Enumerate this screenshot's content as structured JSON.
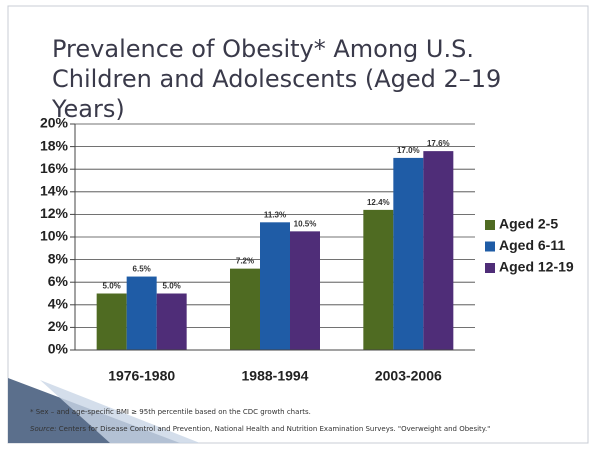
{
  "chart_data": {
    "type": "bar",
    "title": "Prevalence of Obesity* Among U.S. Children and Adolescents (Aged 2–19 Years)",
    "categories": [
      "1976-1980",
      "1988-1994",
      "2003-2006"
    ],
    "series": [
      {
        "name": "Aged 2-5",
        "color": "#4f6b22",
        "values": [
          5.0,
          7.2,
          12.4
        ],
        "value_labels": [
          "5.0%",
          "7.2%",
          "12.4%"
        ]
      },
      {
        "name": "Aged 6-11",
        "color": "#1f5ca6",
        "values": [
          6.5,
          11.3,
          17.0
        ],
        "value_labels": [
          "6.5%",
          "11.3%",
          "17.0%"
        ]
      },
      {
        "name": "Aged 12-19",
        "color": "#4f2d78",
        "values": [
          5.0,
          10.5,
          17.6
        ],
        "value_labels": [
          "5.0%",
          "10.5%",
          "17.6%"
        ]
      }
    ],
    "ylim": [
      0,
      20
    ],
    "yticks": [
      {
        "value": 0,
        "label": "0%"
      },
      {
        "value": 2,
        "label": "2%"
      },
      {
        "value": 4,
        "label": "4%"
      },
      {
        "value": 6,
        "label": "6%"
      },
      {
        "value": 8,
        "label": "8%"
      },
      {
        "value": 10,
        "label": "10%"
      },
      {
        "value": 12,
        "label": "12%"
      },
      {
        "value": 14,
        "label": "14%"
      },
      {
        "value": 16,
        "label": "16%"
      },
      {
        "value": 18,
        "label": "18%"
      },
      {
        "value": 20,
        "label": "20%"
      }
    ],
    "grid": true,
    "legend": "right",
    "footnote": "* Sex – and age-specific BMI ≥ 95th percentile based on the CDC growth charts.",
    "source_label": "Source:",
    "source_text": "Centers for Disease Control and Prevention, National Health and Nutrition Examination Surveys. \"Overweight and Obesity.\""
  }
}
